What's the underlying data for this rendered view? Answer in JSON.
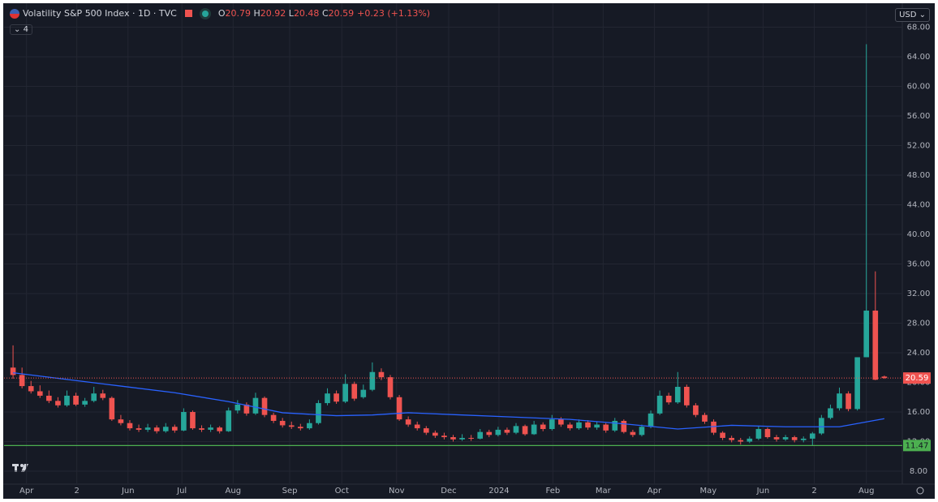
{
  "header": {
    "title": "Volatility S&P 500 Index · 1D · TVC",
    "ohlc": [
      {
        "label": "O",
        "value": 20.79
      },
      {
        "label": "H",
        "value": 20.92
      },
      {
        "label": "L",
        "value": 20.48
      },
      {
        "label": "C",
        "value": 20.59
      }
    ],
    "change": "+0.23 (+1.13%)",
    "indicators": "4",
    "currency": "USD"
  },
  "chart_data": {
    "type": "candlestick",
    "up_color": "#26a69a",
    "down_color": "#ef5350",
    "grid": true,
    "ylim": [
      6.25,
      68.05
    ],
    "yticks": [
      {
        "value": 8,
        "label": "8.00"
      },
      {
        "value": 12,
        "label": "12.00"
      },
      {
        "value": 16,
        "label": "16.00"
      },
      {
        "value": 20,
        "label": "20.00"
      },
      {
        "value": 24,
        "label": "24.00"
      },
      {
        "value": 28,
        "label": "28.00"
      },
      {
        "value": 32,
        "label": "32.00"
      },
      {
        "value": 36,
        "label": "36.00"
      },
      {
        "value": 40,
        "label": "40.00"
      },
      {
        "value": 44,
        "label": "44.00"
      },
      {
        "value": 48,
        "label": "48.00"
      },
      {
        "value": 52,
        "label": "52.00"
      },
      {
        "value": 56,
        "label": "56.00"
      },
      {
        "value": 60,
        "label": "60.00"
      },
      {
        "value": 64,
        "label": "64.00"
      },
      {
        "value": 68,
        "label": "68.00"
      }
    ],
    "xlim": [
      -1,
      99
    ],
    "xticks": [
      {
        "value": 1.5,
        "label": "Apr"
      },
      {
        "value": 7.1,
        "label": "2"
      },
      {
        "value": 12.8,
        "label": "Jun"
      },
      {
        "value": 18.8,
        "label": "Jul"
      },
      {
        "value": 24.5,
        "label": "Aug"
      },
      {
        "value": 30.8,
        "label": "Sep"
      },
      {
        "value": 36.6,
        "label": "Oct"
      },
      {
        "value": 42.7,
        "label": "Nov"
      },
      {
        "value": 48.5,
        "label": "Dec"
      },
      {
        "value": 54.1,
        "label": "2024"
      },
      {
        "value": 60.1,
        "label": "Feb"
      },
      {
        "value": 65.7,
        "label": "Mar"
      },
      {
        "value": 71.4,
        "label": "Apr"
      },
      {
        "value": 77.4,
        "label": "May"
      },
      {
        "value": 83.5,
        "label": "Jun"
      },
      {
        "value": 89.2,
        "label": "2"
      },
      {
        "value": 95,
        "label": "Aug"
      }
    ],
    "x": [
      0,
      1,
      2,
      3,
      4,
      5,
      6,
      7,
      8,
      9,
      10,
      11,
      12,
      13,
      14,
      15,
      16,
      17,
      18,
      19,
      20,
      21,
      22,
      23,
      24,
      25,
      26,
      27,
      28,
      29,
      30,
      31,
      32,
      33,
      34,
      35,
      36,
      37,
      38,
      39,
      40,
      41,
      42,
      43,
      44,
      45,
      46,
      47,
      48,
      49,
      50,
      51,
      52,
      53,
      54,
      55,
      56,
      57,
      58,
      59,
      60,
      61,
      62,
      63,
      64,
      65,
      66,
      67,
      68,
      69,
      70,
      71,
      72,
      73,
      74,
      75,
      76,
      77,
      78,
      79,
      80,
      81,
      82,
      83,
      84,
      85,
      86,
      87,
      88,
      89,
      90,
      91,
      92,
      93,
      94,
      95,
      96,
      97
    ],
    "candles": [
      [
        22,
        25,
        20.5,
        21
      ],
      [
        21,
        22,
        19.2,
        19.5
      ],
      [
        19.5,
        20.2,
        18.5,
        18.8
      ],
      [
        18.8,
        19.6,
        17.9,
        18.2
      ],
      [
        18.2,
        18.9,
        17.2,
        17.5
      ],
      [
        17.5,
        18,
        16.6,
        16.9
      ],
      [
        16.9,
        18.9,
        16.7,
        18.2
      ],
      [
        18.2,
        18.6,
        16.8,
        17
      ],
      [
        17,
        17.9,
        16.7,
        17.5
      ],
      [
        17.5,
        19.4,
        17.3,
        18.5
      ],
      [
        18.5,
        19,
        17.6,
        17.9
      ],
      [
        17.9,
        18.1,
        14.8,
        15
      ],
      [
        15,
        15.6,
        14.2,
        14.5
      ],
      [
        14.5,
        14.9,
        13.5,
        13.8
      ],
      [
        13.8,
        14.3,
        13.3,
        13.6
      ],
      [
        13.6,
        14.4,
        13.3,
        13.9
      ],
      [
        13.9,
        14.2,
        13.1,
        13.4
      ],
      [
        13.4,
        14.5,
        13.2,
        14
      ],
      [
        14,
        14.3,
        13.2,
        13.5
      ],
      [
        13.5,
        16.5,
        13.4,
        16
      ],
      [
        16,
        16.2,
        13.6,
        13.8
      ],
      [
        13.8,
        14.2,
        13.3,
        13.6
      ],
      [
        13.6,
        14.3,
        13.3,
        13.9
      ],
      [
        13.9,
        14.1,
        13.1,
        13.4
      ],
      [
        13.4,
        16.6,
        13.3,
        16.2
      ],
      [
        16.2,
        17.6,
        15.8,
        17
      ],
      [
        17,
        17.3,
        15.5,
        15.8
      ],
      [
        15.8,
        18.6,
        15.6,
        17.9
      ],
      [
        17.9,
        18.1,
        15.3,
        15.6
      ],
      [
        15.6,
        15.9,
        14.5,
        14.8
      ],
      [
        14.8,
        15.2,
        13.9,
        14.2
      ],
      [
        14.2,
        14.7,
        13.7,
        14
      ],
      [
        14,
        14.4,
        13.5,
        13.8
      ],
      [
        13.8,
        15,
        13.6,
        14.5
      ],
      [
        14.5,
        17.6,
        14.3,
        17.2
      ],
      [
        17.2,
        19.2,
        16.9,
        18.5
      ],
      [
        18.5,
        18.9,
        17.1,
        17.4
      ],
      [
        17.4,
        21.1,
        17.2,
        19.8
      ],
      [
        19.8,
        20.1,
        17.5,
        17.8
      ],
      [
        18,
        19.7,
        17.8,
        19
      ],
      [
        19,
        22.7,
        18.8,
        21.4
      ],
      [
        21.4,
        21.9,
        20.3,
        20.7
      ],
      [
        20.7,
        21,
        17.7,
        18
      ],
      [
        18,
        18.3,
        14.8,
        15
      ],
      [
        15,
        15.4,
        14,
        14.3
      ],
      [
        14.3,
        14.7,
        13.5,
        13.8
      ],
      [
        13.8,
        14.1,
        12.9,
        13.2
      ],
      [
        13.2,
        13.5,
        12.5,
        12.8
      ],
      [
        12.8,
        13.2,
        12.3,
        12.6
      ],
      [
        12.6,
        12.9,
        12,
        12.3
      ],
      [
        12.3,
        13,
        12.1,
        12.5
      ],
      [
        12.5,
        12.9,
        12.1,
        12.4
      ],
      [
        12.4,
        13.7,
        12.3,
        13.3
      ],
      [
        13.3,
        13.6,
        12.6,
        12.9
      ],
      [
        12.9,
        14,
        12.7,
        13.6
      ],
      [
        13.6,
        13.9,
        12.9,
        13.2
      ],
      [
        13.2,
        14.5,
        13,
        14.1
      ],
      [
        14.1,
        14.3,
        12.8,
        13
      ],
      [
        13,
        14.8,
        12.9,
        14.3
      ],
      [
        14.3,
        14.6,
        13.4,
        13.7
      ],
      [
        13.7,
        15.6,
        13.5,
        15
      ],
      [
        15,
        15.3,
        14,
        14.3
      ],
      [
        14.3,
        14.6,
        13.5,
        13.8
      ],
      [
        13.8,
        15,
        13.6,
        14.6
      ],
      [
        14.6,
        14.9,
        13.6,
        13.9
      ],
      [
        13.9,
        14.7,
        13.6,
        14.3
      ],
      [
        14.3,
        14.5,
        13.2,
        13.5
      ],
      [
        13.5,
        15.2,
        13.3,
        14.8
      ],
      [
        14.8,
        15,
        13.1,
        13.3
      ],
      [
        13.3,
        13.6,
        12.6,
        12.9
      ],
      [
        12.9,
        14.3,
        12.7,
        14
      ],
      [
        14,
        16.2,
        13.8,
        15.8
      ],
      [
        15.8,
        18.9,
        15.6,
        18.2
      ],
      [
        18.2,
        18.6,
        17,
        17.3
      ],
      [
        17.3,
        21.4,
        17.1,
        19.4
      ],
      [
        19.4,
        19.7,
        16.6,
        16.9
      ],
      [
        16.9,
        17.2,
        15.3,
        15.6
      ],
      [
        15.6,
        15.9,
        14.4,
        14.7
      ],
      [
        14.7,
        15,
        12.9,
        13.2
      ],
      [
        13.2,
        13.4,
        12.2,
        12.5
      ],
      [
        12.5,
        12.8,
        11.9,
        12.2
      ],
      [
        12.2,
        12.5,
        11.6,
        12
      ],
      [
        12,
        12.7,
        11.8,
        12.4
      ],
      [
        12.4,
        14.1,
        12.2,
        13.7
      ],
      [
        13.7,
        13.9,
        12.4,
        12.6
      ],
      [
        12.6,
        12.9,
        12,
        12.3
      ],
      [
        12.3,
        12.9,
        12.1,
        12.6
      ],
      [
        12.6,
        12.8,
        11.9,
        12.2
      ],
      [
        12.2,
        12.7,
        11.9,
        12.4
      ],
      [
        12.4,
        13.3,
        11.47,
        13.1
      ],
      [
        13.1,
        15.6,
        12.9,
        15.2
      ],
      [
        15.2,
        17,
        15,
        16.5
      ],
      [
        16.5,
        19.3,
        16.2,
        18.5
      ],
      [
        18.5,
        18.8,
        16.1,
        16.4
      ],
      [
        16.4,
        23.4,
        16.2,
        23.4
      ],
      [
        23.4,
        65.7,
        23.4,
        29.7
      ],
      [
        29.7,
        35,
        20.3,
        20.36
      ],
      [
        20.79,
        20.92,
        20.48,
        20.59
      ]
    ],
    "moving_average": {
      "color": "#2962ff",
      "x": [
        0,
        6,
        12,
        18,
        24,
        30,
        36,
        40,
        44,
        50,
        56,
        62,
        68,
        74,
        80,
        86,
        92,
        97
      ],
      "values": [
        21.3,
        20.4,
        19.5,
        18.6,
        17.4,
        15.9,
        15.5,
        15.6,
        15.9,
        15.6,
        15.3,
        15.0,
        14.4,
        13.7,
        14.2,
        14.0,
        14.0,
        15.1
      ]
    },
    "low_line": {
      "value": 11.47,
      "color": "#4caf50"
    }
  }
}
